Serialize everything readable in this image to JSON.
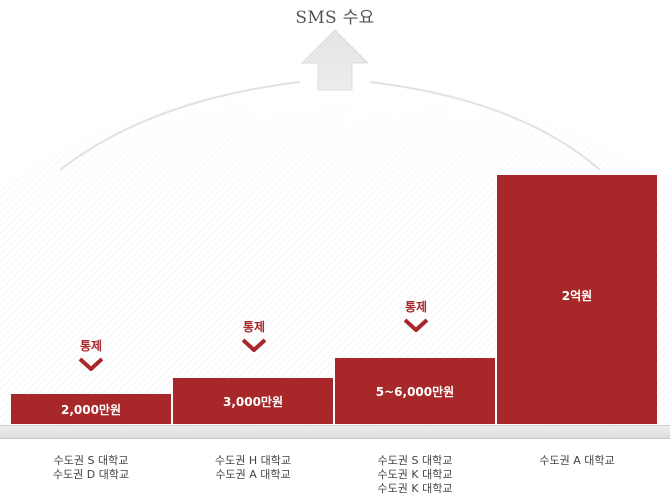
{
  "title": "SMS 수요",
  "controls": {
    "label": "통제"
  },
  "steps": [
    {
      "amount": "2,000만원",
      "universities": [
        "수도권 S 대학교",
        "수도권 D 대학교"
      ],
      "has_control": true
    },
    {
      "amount": "3,000만원",
      "universities": [
        "수도권 H 대학교",
        "수도권 A 대학교"
      ],
      "has_control": true
    },
    {
      "amount": "5~6,000만원",
      "universities": [
        "수도권 S 대학교",
        "수도권 K 대학교",
        "수도권 K 대학교"
      ],
      "has_control": true
    },
    {
      "amount": "2억원",
      "universities": [
        "수도권 A 대학교"
      ],
      "has_control": false
    }
  ],
  "colors": {
    "bar": "#a8282a",
    "arrow": "#e6e6e6",
    "baseline": "#e2e2e2"
  }
}
